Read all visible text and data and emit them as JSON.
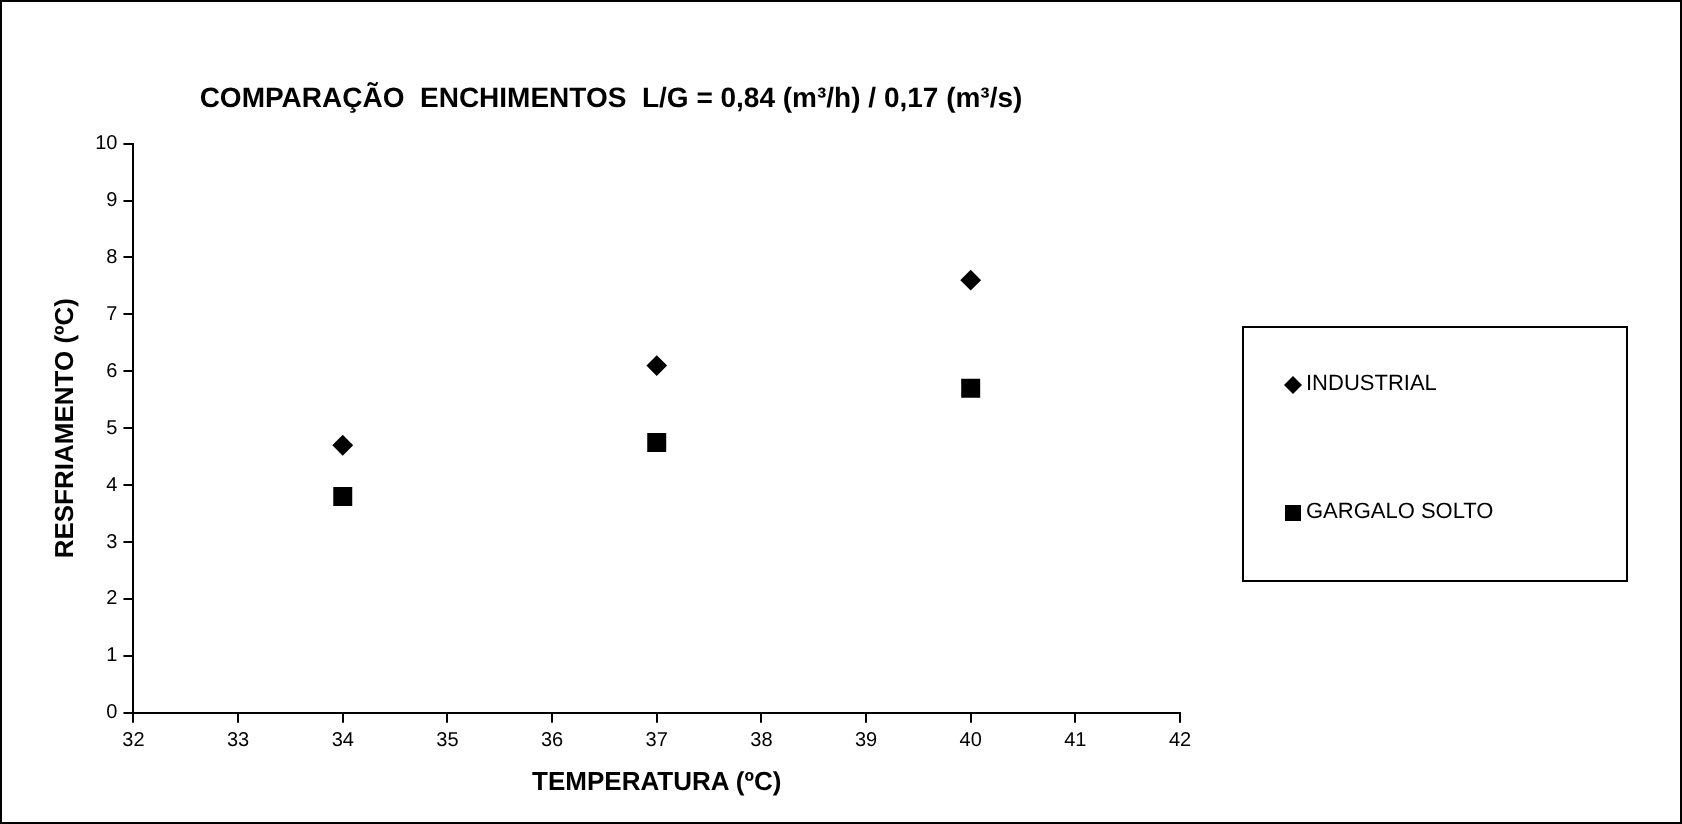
{
  "chart_data": {
    "type": "scatter",
    "title": "COMPARAÇÃO  ENCHIMENTOS  L/G = 0,84 (m³/h) / 0,17 (m³/s)",
    "xlabel": "TEMPERATURA (ºC)",
    "ylabel": "RESFRIAMENTO (ºC)",
    "x": [
      34,
      37,
      40
    ],
    "series": [
      {
        "name": "INDUSTRIAL",
        "color": "#000000",
        "marker": "diamond",
        "values": [
          4.7,
          6.1,
          7.6
        ]
      },
      {
        "name": "GARGALO SOLTO",
        "color": "#000000",
        "marker": "square",
        "values": [
          3.8,
          4.75,
          5.7
        ]
      }
    ],
    "xlim": [
      32,
      42
    ],
    "xticks": [
      32,
      33,
      34,
      35,
      36,
      37,
      38,
      39,
      40,
      41,
      42
    ],
    "ylim": [
      0,
      10
    ],
    "yticks": [
      0,
      1,
      2,
      3,
      4,
      5,
      6,
      7,
      8,
      9,
      10
    ],
    "grid": false,
    "legend": "right"
  }
}
